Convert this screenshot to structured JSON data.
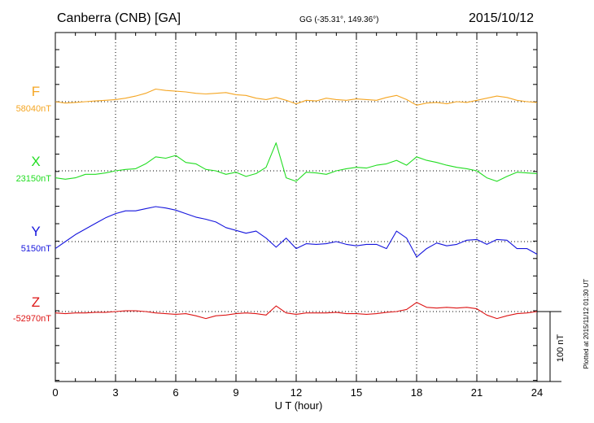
{
  "header": {
    "station": "Canberra (CNB)  [GA]",
    "coords": "GG (-35.31°, 149.36°)",
    "date": "2015/10/12"
  },
  "footer": {
    "plotted": "Plotted at 2015/11/12 01:30 UT"
  },
  "chart_data": {
    "type": "line",
    "xlabel": "U T (hour)",
    "xlim": [
      0,
      24
    ],
    "x_ticks": [
      "0",
      "3",
      "6",
      "9",
      "12",
      "15",
      "18",
      "21",
      "24"
    ],
    "scale_bar_label": "100 nT",
    "grid": true,
    "series": [
      {
        "name": "F",
        "baseline_label": "58040nT",
        "color": "#f5a623",
        "x": [
          0,
          0.5,
          1,
          1.5,
          2,
          2.5,
          3,
          3.5,
          4,
          4.5,
          5,
          5.5,
          6,
          6.5,
          7,
          7.5,
          8,
          8.5,
          9,
          9.5,
          10,
          10.5,
          11,
          11.5,
          12,
          12.5,
          13,
          13.5,
          14,
          14.5,
          15,
          15.5,
          16,
          16.5,
          17,
          17.5,
          18,
          18.5,
          19,
          19.5,
          20,
          20.5,
          21,
          21.5,
          22,
          22.5,
          23,
          23.5,
          24
        ],
        "values": [
          0,
          -2,
          -1,
          0,
          1,
          2,
          3,
          5,
          8,
          12,
          18,
          16,
          15,
          14,
          12,
          11,
          12,
          13,
          10,
          9,
          5,
          3,
          6,
          2,
          -3,
          2,
          1,
          5,
          3,
          2,
          4,
          3,
          2,
          6,
          9,
          3,
          -5,
          -2,
          -1,
          -3,
          0,
          -1,
          2,
          5,
          8,
          6,
          2,
          0,
          -1
        ]
      },
      {
        "name": "X",
        "baseline_label": "23150nT",
        "color": "#22dd22",
        "x": [
          0,
          0.5,
          1,
          1.5,
          2,
          2.5,
          3,
          3.5,
          4,
          4.5,
          5,
          5.5,
          6,
          6.5,
          7,
          7.5,
          8,
          8.5,
          9,
          9.5,
          10,
          10.5,
          11,
          11.5,
          12,
          12.5,
          13,
          13.5,
          14,
          14.5,
          15,
          15.5,
          16,
          16.5,
          17,
          17.5,
          18,
          18.5,
          19,
          19.5,
          20,
          20.5,
          21,
          21.5,
          22,
          22.5,
          23,
          23.5,
          24
        ],
        "values": [
          -10,
          -12,
          -10,
          -5,
          -5,
          -3,
          0,
          2,
          3,
          10,
          20,
          18,
          22,
          12,
          10,
          2,
          0,
          -5,
          -2,
          -8,
          -4,
          5,
          40,
          -10,
          -15,
          -2,
          -3,
          -5,
          0,
          3,
          5,
          4,
          8,
          10,
          15,
          8,
          20,
          15,
          12,
          8,
          5,
          3,
          0,
          -10,
          -15,
          -8,
          -2,
          -3,
          -4
        ]
      },
      {
        "name": "Y",
        "baseline_label": "5150nT",
        "color": "#1515dd",
        "x": [
          0,
          0.5,
          1,
          1.5,
          2,
          2.5,
          3,
          3.5,
          4,
          4.5,
          5,
          5.5,
          6,
          6.5,
          7,
          7.5,
          8,
          8.5,
          9,
          9.5,
          10,
          10.5,
          11,
          11.5,
          12,
          12.5,
          13,
          13.5,
          14,
          14.5,
          15,
          15.5,
          16,
          16.5,
          17,
          17.5,
          18,
          18.5,
          19,
          19.5,
          20,
          20.5,
          21,
          21.5,
          22,
          22.5,
          23,
          23.5,
          24
        ],
        "values": [
          -10,
          0,
          10,
          18,
          26,
          34,
          40,
          44,
          44,
          47,
          50,
          48,
          45,
          40,
          35,
          32,
          28,
          20,
          16,
          12,
          15,
          5,
          -8,
          5,
          -10,
          -3,
          -4,
          -3,
          0,
          -4,
          -6,
          -4,
          -4,
          -10,
          15,
          5,
          -22,
          -10,
          -2,
          -6,
          -4,
          2,
          3,
          -4,
          3,
          2,
          -10,
          -10,
          -18
        ]
      },
      {
        "name": "Z",
        "baseline_label": "-52970nT",
        "color": "#dd1515",
        "x": [
          0,
          0.5,
          1,
          1.5,
          2,
          2.5,
          3,
          3.5,
          4,
          4.5,
          5,
          5.5,
          6,
          6.5,
          7,
          7.5,
          8,
          8.5,
          9,
          9.5,
          10,
          10.5,
          11,
          11.5,
          12,
          12.5,
          13,
          13.5,
          14,
          14.5,
          15,
          15.5,
          16,
          16.5,
          17,
          17.5,
          18,
          18.5,
          19,
          19.5,
          20,
          20.5,
          21,
          21.5,
          22,
          22.5,
          23,
          23.5,
          24
        ],
        "values": [
          -2,
          -3,
          -2,
          -2,
          -1,
          -1,
          0,
          1,
          1,
          0,
          -2,
          -3,
          -4,
          -3,
          -6,
          -10,
          -6,
          -5,
          -3,
          -2,
          -3,
          -5,
          8,
          -2,
          -4,
          -2,
          -2,
          -2,
          -1,
          -3,
          -3,
          -4,
          -3,
          -1,
          0,
          3,
          13,
          6,
          5,
          6,
          5,
          6,
          4,
          -5,
          -10,
          -6,
          -3,
          -2,
          0
        ]
      }
    ]
  }
}
